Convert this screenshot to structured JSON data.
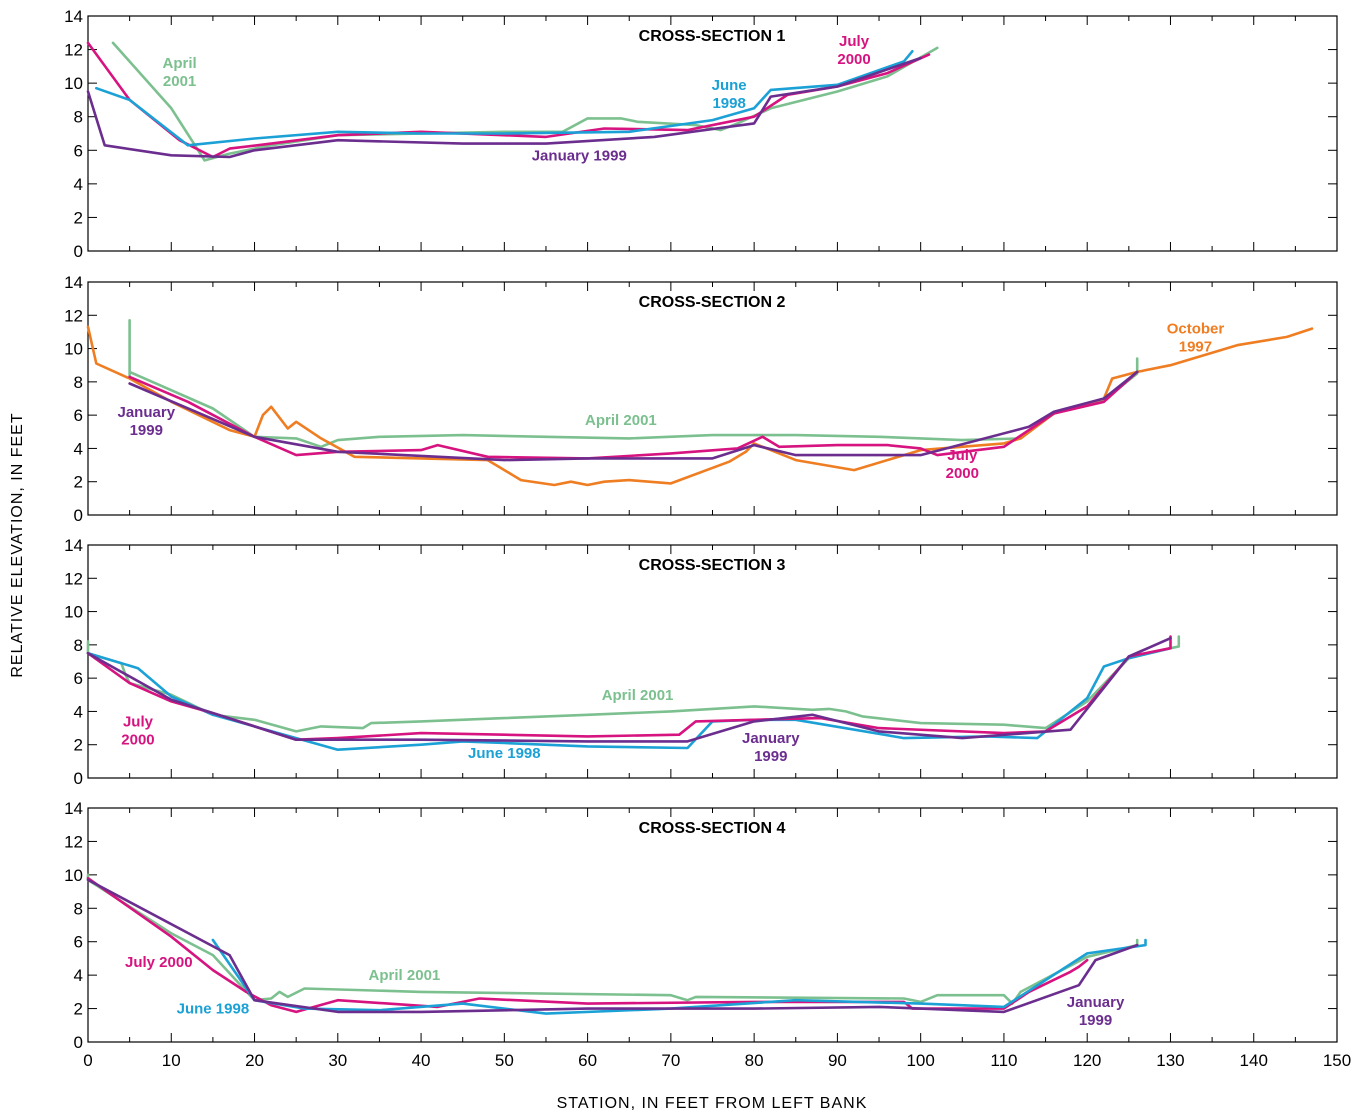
{
  "colors": {
    "june_1998": "#1ba1d6",
    "january_1999": "#6b2e8f",
    "july_2000": "#d6137f",
    "april_2001": "#7cc08f",
    "october_1997": "#ef7d22",
    "axis": "#000000"
  },
  "figure": {
    "ylabel": "RELATIVE ELEVATION, IN FEET",
    "xlabel": "STATION, IN FEET FROM LEFT BANK"
  },
  "chart_data": [
    {
      "type": "line",
      "title": "CROSS-SECTION 1",
      "xlim": [
        0,
        150
      ],
      "ylim": [
        0,
        14
      ],
      "xticks": [
        0,
        10,
        20,
        30,
        40,
        50,
        60,
        70,
        80,
        90,
        100,
        110,
        120,
        130,
        140,
        150
      ],
      "yticks": [
        0,
        2,
        4,
        6,
        8,
        10,
        12,
        14
      ],
      "series": [
        {
          "key": "april_2001",
          "label_lines": [
            "April",
            "2001"
          ],
          "label_pos": [
            11,
            10.9
          ],
          "x": [
            3,
            10,
            14,
            17,
            22,
            30,
            50,
            57,
            60,
            64,
            66,
            73,
            76,
            78,
            82,
            90,
            96,
            102
          ],
          "y": [
            12.4,
            8.5,
            5.4,
            5.8,
            6.3,
            6.9,
            7.1,
            7.1,
            7.9,
            7.9,
            7.7,
            7.5,
            7.2,
            7.6,
            8.5,
            9.5,
            10.4,
            12.1
          ]
        },
        {
          "key": "july_2000",
          "label_lines": [
            "July",
            "2000"
          ],
          "label_pos": [
            92,
            12.2
          ],
          "x": [
            0,
            5,
            11,
            15,
            17,
            22,
            30,
            40,
            55,
            62,
            72,
            80,
            84,
            90,
            96,
            101
          ],
          "y": [
            12.4,
            9.0,
            6.6,
            5.6,
            6.1,
            6.4,
            6.9,
            7.1,
            6.8,
            7.3,
            7.2,
            8.0,
            9.3,
            9.8,
            10.6,
            11.7
          ]
        },
        {
          "key": "june_1998",
          "label_lines": [
            "June",
            "1998"
          ],
          "label_pos": [
            77,
            9.6
          ],
          "x": [
            1,
            5,
            12,
            20,
            30,
            40,
            50,
            65,
            75,
            80,
            82,
            90,
            98,
            99
          ],
          "y": [
            9.7,
            9.0,
            6.3,
            6.7,
            7.1,
            7.0,
            7.0,
            7.1,
            7.8,
            8.5,
            9.6,
            9.9,
            11.3,
            11.9
          ]
        },
        {
          "key": "january_1999",
          "label_lines": [
            "January 1999"
          ],
          "label_pos": [
            59,
            5.4
          ],
          "x": [
            0,
            2,
            10,
            17,
            20,
            30,
            45,
            55,
            68,
            80,
            82,
            90,
            100
          ],
          "y": [
            9.5,
            6.3,
            5.7,
            5.6,
            6.0,
            6.6,
            6.4,
            6.4,
            6.8,
            7.6,
            9.2,
            9.8,
            11.5
          ]
        }
      ]
    },
    {
      "type": "line",
      "title": "CROSS-SECTION 2",
      "xlim": [
        0,
        150
      ],
      "ylim": [
        0,
        14
      ],
      "xticks": [
        0,
        10,
        20,
        30,
        40,
        50,
        60,
        70,
        80,
        90,
        100,
        110,
        120,
        130,
        140,
        150
      ],
      "yticks": [
        0,
        2,
        4,
        6,
        8,
        10,
        12,
        14
      ],
      "series": [
        {
          "key": "april_2001",
          "label_lines": [
            "April 2001"
          ],
          "label_pos": [
            64,
            5.4
          ],
          "x": [
            5,
            5,
            5,
            15,
            20,
            25,
            28,
            30,
            35,
            45,
            55,
            65,
            75,
            85,
            95,
            105,
            112,
            116,
            122,
            126,
            126
          ],
          "y": [
            11.7,
            8.4,
            8.6,
            6.4,
            4.7,
            4.6,
            4.1,
            4.5,
            4.7,
            4.8,
            4.7,
            4.6,
            4.8,
            4.8,
            4.7,
            4.5,
            4.6,
            6.1,
            6.9,
            8.5,
            9.4
          ]
        },
        {
          "key": "october_1997",
          "label_lines": [
            "October",
            "1997"
          ],
          "label_pos": [
            133,
            10.9
          ],
          "x": [
            0,
            1,
            5,
            10,
            17,
            20,
            21,
            22,
            24,
            25,
            28,
            32,
            40,
            48,
            52,
            56,
            58,
            60,
            62,
            65,
            70,
            77,
            79,
            80,
            85,
            92,
            100,
            110,
            112,
            116,
            122,
            123,
            126,
            130,
            138,
            144,
            147
          ],
          "y": [
            11.3,
            9.1,
            8.2,
            6.8,
            5.1,
            4.7,
            6.0,
            6.5,
            5.2,
            5.6,
            4.6,
            3.5,
            3.4,
            3.3,
            2.1,
            1.8,
            2.0,
            1.8,
            2.0,
            2.1,
            1.9,
            3.2,
            3.8,
            4.3,
            3.3,
            2.7,
            3.9,
            4.3,
            4.6,
            6.1,
            7.0,
            8.2,
            8.6,
            9.0,
            10.2,
            10.7,
            11.2
          ]
        },
        {
          "key": "july_2000",
          "label_lines": [
            "July",
            "2000"
          ],
          "label_pos": [
            105,
            3.3
          ],
          "x": [
            5,
            12,
            20,
            25,
            30,
            40,
            42,
            48,
            60,
            70,
            78,
            81,
            83,
            90,
            96,
            100,
            102,
            110,
            116,
            122,
            126
          ],
          "y": [
            8.3,
            6.8,
            4.7,
            3.6,
            3.8,
            3.9,
            4.2,
            3.5,
            3.4,
            3.7,
            4.0,
            4.7,
            4.1,
            4.2,
            4.2,
            4.0,
            3.6,
            4.1,
            6.1,
            6.8,
            8.6
          ]
        },
        {
          "key": "january_1999",
          "label_lines": [
            "January",
            "1999"
          ],
          "label_pos": [
            7,
            5.9
          ],
          "x": [
            5,
            20,
            30,
            50,
            60,
            75,
            80,
            85,
            100,
            113,
            116,
            122,
            126
          ],
          "y": [
            7.9,
            4.7,
            3.8,
            3.3,
            3.4,
            3.4,
            4.2,
            3.6,
            3.6,
            5.3,
            6.2,
            7.0,
            8.6
          ]
        }
      ]
    },
    {
      "type": "line",
      "title": "CROSS-SECTION 3",
      "xlim": [
        0,
        150
      ],
      "ylim": [
        0,
        14
      ],
      "xticks": [
        0,
        10,
        20,
        30,
        40,
        50,
        60,
        70,
        80,
        90,
        100,
        110,
        120,
        130,
        140,
        150
      ],
      "yticks": [
        0,
        2,
        4,
        6,
        8,
        10,
        12,
        14
      ],
      "series": [
        {
          "key": "april_2001",
          "label_lines": [
            "April 2001"
          ],
          "label_pos": [
            66,
            4.7
          ],
          "x": [
            0,
            0,
            4,
            4.5,
            5,
            10,
            15,
            20,
            25,
            28,
            33,
            34,
            40,
            50,
            60,
            70,
            80,
            87,
            89,
            91,
            93,
            100,
            110,
            115,
            120,
            125,
            130,
            131,
            131
          ],
          "y": [
            8.2,
            7.5,
            6.9,
            6.2,
            5.7,
            5.0,
            3.8,
            3.5,
            2.8,
            3.1,
            3.0,
            3.3,
            3.4,
            3.6,
            3.8,
            4.0,
            4.3,
            4.1,
            4.15,
            4.0,
            3.7,
            3.3,
            3.2,
            3.0,
            4.6,
            7.2,
            7.8,
            7.9,
            8.5
          ]
        },
        {
          "key": "june_1998",
          "label_lines": [
            "June 1998"
          ],
          "label_pos": [
            50,
            1.2
          ],
          "x": [
            0,
            6,
            10,
            15,
            25,
            30,
            40,
            45,
            50,
            60,
            72,
            75,
            80,
            85,
            98,
            108,
            114,
            120,
            122,
            125,
            130
          ],
          "y": [
            7.5,
            6.6,
            4.9,
            3.8,
            2.4,
            1.7,
            2.0,
            2.2,
            2.1,
            1.9,
            1.8,
            3.4,
            3.5,
            3.5,
            2.4,
            2.5,
            2.4,
            4.8,
            6.7,
            7.2,
            7.8
          ]
        },
        {
          "key": "july_2000",
          "label_lines": [
            "July",
            "2000"
          ],
          "label_pos": [
            6,
            3.1
          ],
          "x": [
            0,
            5,
            10,
            15,
            25,
            30,
            40,
            50,
            60,
            71,
            73,
            80,
            88,
            95,
            110,
            115,
            120,
            125,
            130,
            130
          ],
          "y": [
            7.5,
            5.7,
            4.6,
            3.9,
            2.3,
            2.4,
            2.7,
            2.6,
            2.5,
            2.6,
            3.4,
            3.5,
            3.6,
            3.0,
            2.7,
            2.8,
            4.3,
            7.3,
            7.8,
            8.5
          ]
        },
        {
          "key": "january_1999",
          "label_lines": [
            "January",
            "1999"
          ],
          "label_pos": [
            82,
            2.1
          ],
          "x": [
            0,
            10,
            20,
            25,
            40,
            60,
            72,
            80,
            87,
            95,
            105,
            118,
            125,
            130
          ],
          "y": [
            7.5,
            4.7,
            3.1,
            2.3,
            2.3,
            2.2,
            2.2,
            3.4,
            3.8,
            2.8,
            2.4,
            2.9,
            7.3,
            8.4
          ]
        }
      ]
    },
    {
      "type": "line",
      "title": "CROSS-SECTION 4",
      "xlim": [
        0,
        150
      ],
      "ylim": [
        0,
        14
      ],
      "xticks": [
        0,
        10,
        20,
        30,
        40,
        50,
        60,
        70,
        80,
        90,
        100,
        110,
        120,
        130,
        140,
        150
      ],
      "yticks": [
        0,
        2,
        4,
        6,
        8,
        10,
        12,
        14
      ],
      "series": [
        {
          "key": "april_2001",
          "label_lines": [
            "April 2001"
          ],
          "label_pos": [
            38,
            3.7
          ],
          "x": [
            0,
            0,
            10,
            15,
            20,
            22,
            23,
            24,
            26,
            40,
            70,
            72,
            73,
            98,
            100,
            102,
            110,
            111,
            112,
            120,
            126,
            126
          ],
          "y": [
            10.0,
            9.7,
            6.5,
            5.2,
            2.5,
            2.6,
            3.0,
            2.7,
            3.2,
            3.0,
            2.8,
            2.5,
            2.7,
            2.6,
            2.4,
            2.8,
            2.8,
            2.3,
            3.0,
            5.1,
            5.8,
            6.1
          ]
        },
        {
          "key": "july_2000",
          "label_lines": [
            "July 2000"
          ],
          "label_pos": [
            8.5,
            4.5
          ],
          "x": [
            0,
            10,
            15,
            19,
            22,
            25,
            30,
            42,
            47,
            60,
            80,
            98,
            99,
            110,
            113,
            118,
            119,
            120
          ],
          "y": [
            9.8,
            6.3,
            4.3,
            3.0,
            2.2,
            1.8,
            2.5,
            2.1,
            2.6,
            2.3,
            2.4,
            2.4,
            2.0,
            2.0,
            3.0,
            4.2,
            4.5,
            4.9
          ]
        },
        {
          "key": "june_1998",
          "label_lines": [
            "June 1998"
          ],
          "label_pos": [
            15,
            1.7
          ],
          "x": [
            15,
            20,
            26,
            35,
            45,
            55,
            70,
            85,
            100,
            110,
            120,
            127,
            127
          ],
          "y": [
            6.1,
            2.5,
            2.0,
            1.9,
            2.3,
            1.7,
            2.0,
            2.5,
            2.3,
            2.1,
            5.3,
            5.8,
            6.1
          ]
        },
        {
          "key": "january_1999",
          "label_lines": [
            "January",
            "1999"
          ],
          "label_pos": [
            121,
            2.1
          ],
          "x": [
            0,
            17,
            20,
            30,
            40,
            60,
            80,
            95,
            110,
            119,
            121,
            126
          ],
          "y": [
            9.7,
            5.2,
            2.5,
            1.8,
            1.8,
            2.0,
            2.0,
            2.1,
            1.8,
            3.4,
            4.9,
            5.8
          ]
        }
      ]
    }
  ]
}
